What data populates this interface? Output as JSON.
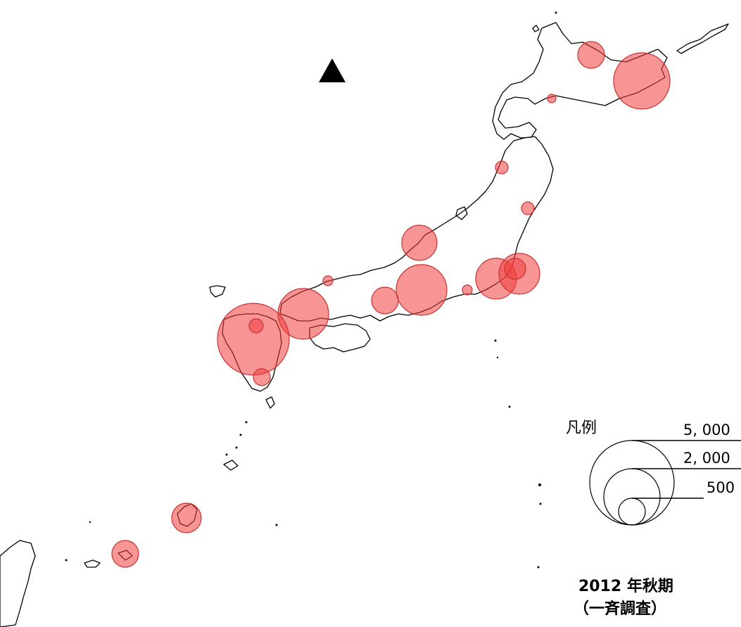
{
  "map": {
    "north_marker_icon": "triangle-north-icon",
    "bubble_color": "#f03c3c",
    "coastline_color": "#000000"
  },
  "legend": {
    "title": "凡例",
    "entries": [
      {
        "label": "5, 000",
        "value": 5000
      },
      {
        "label": "2, 000",
        "value": 2000
      },
      {
        "label": "500",
        "value": 500
      }
    ]
  },
  "caption": {
    "line1": "2012 年秋期",
    "line2": "（一斉調査）"
  }
}
